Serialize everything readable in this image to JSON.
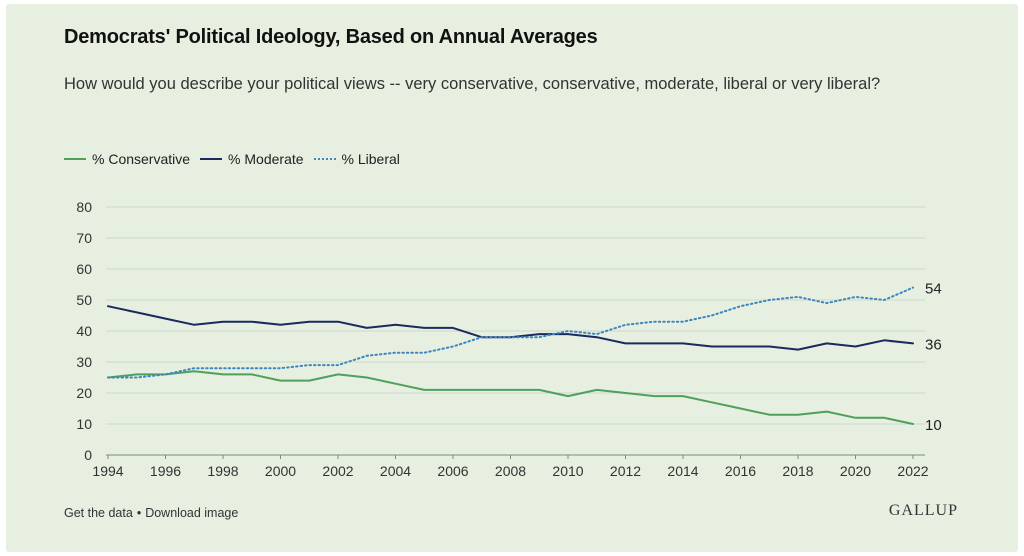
{
  "header": {
    "title": "Democrats' Political Ideology, Based on Annual Averages",
    "subtitle": "How would you describe your political views -- very conservative, conservative, moderate, liberal or very liberal?"
  },
  "footer": {
    "get_data": "Get the data",
    "separator": "•",
    "download": "Download image",
    "logo": "GALLUP"
  },
  "chart_data": {
    "type": "line",
    "x": [
      1994,
      1995,
      1996,
      1997,
      1998,
      1999,
      2000,
      2001,
      2002,
      2003,
      2004,
      2005,
      2006,
      2007,
      2008,
      2009,
      2010,
      2011,
      2012,
      2013,
      2014,
      2015,
      2016,
      2017,
      2018,
      2019,
      2020,
      2021,
      2022
    ],
    "series": [
      {
        "name": "% Conservative",
        "color": "#4fa05b",
        "style": "solid",
        "values": [
          25,
          26,
          26,
          27,
          26,
          26,
          24,
          24,
          26,
          25,
          23,
          21,
          21,
          21,
          21,
          21,
          19,
          21,
          20,
          19,
          19,
          17,
          15,
          13,
          13,
          14,
          12,
          12,
          10
        ],
        "end_label": "10"
      },
      {
        "name": "% Moderate",
        "color": "#1a2a5e",
        "style": "solid",
        "values": [
          48,
          46,
          44,
          42,
          43,
          43,
          42,
          43,
          43,
          41,
          42,
          41,
          41,
          38,
          38,
          39,
          39,
          38,
          36,
          36,
          36,
          35,
          35,
          35,
          34,
          36,
          35,
          37,
          36
        ],
        "end_label": "36"
      },
      {
        "name": "% Liberal",
        "color": "#3d86c0",
        "style": "dotted",
        "values": [
          25,
          25,
          26,
          28,
          28,
          28,
          28,
          29,
          29,
          32,
          33,
          33,
          35,
          38,
          38,
          38,
          40,
          39,
          42,
          43,
          43,
          45,
          48,
          50,
          51,
          49,
          51,
          50,
          54
        ],
        "end_label": "54"
      }
    ],
    "x_ticks": [
      "1994",
      "1996",
      "1998",
      "2000",
      "2002",
      "2004",
      "2006",
      "2008",
      "2010",
      "2012",
      "2014",
      "2016",
      "2018",
      "2020",
      "2022"
    ],
    "y_ticks": [
      "0",
      "10",
      "20",
      "30",
      "40",
      "50",
      "60",
      "70",
      "80"
    ],
    "ylim": [
      0,
      80
    ],
    "xlim": [
      1994,
      2022
    ],
    "grid": true,
    "legend_position": "top-left"
  }
}
